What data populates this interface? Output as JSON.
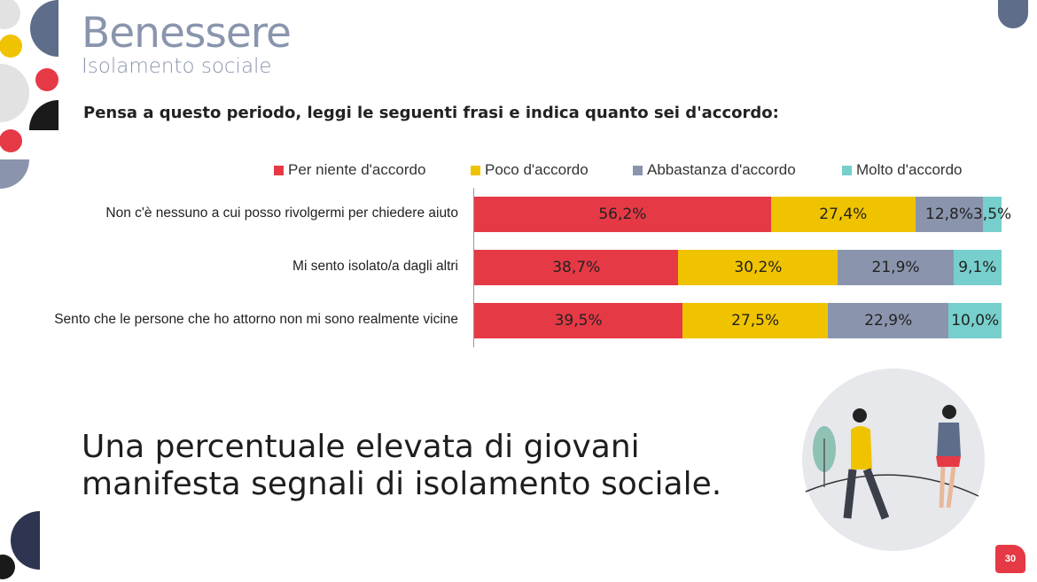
{
  "header": {
    "title": "Benessere",
    "subtitle": "Isolamento sociale"
  },
  "question": "Pensa a questo periodo, leggi le seguenti frasi e indica quanto sei d'accordo:",
  "chart_data": {
    "type": "bar",
    "orientation": "horizontal-stacked-100",
    "categories": [
      "Non c'è nessuno a cui posso rivolgermi per chiedere aiuto",
      "Mi sento isolato/a dagli altri",
      "Sento che le persone che ho attorno non mi sono realmente vicine"
    ],
    "series": [
      {
        "name": "Per niente d'accordo",
        "color": "#e63946",
        "values": [
          56.2,
          38.7,
          39.5
        ],
        "labels": [
          "56,2%",
          "38,7%",
          "39,5%"
        ]
      },
      {
        "name": "Poco d'accordo",
        "color": "#f0c300",
        "values": [
          27.4,
          30.2,
          27.5
        ],
        "labels": [
          "27,4%",
          "30,2%",
          "27,5%"
        ]
      },
      {
        "name": "Abbastanza d'accordo",
        "color": "#8a95ad",
        "values": [
          12.8,
          21.9,
          22.9
        ],
        "labels": [
          "12,8%",
          "21,9%",
          "22,9%"
        ]
      },
      {
        "name": "Molto d'accordo",
        "color": "#76cfcc",
        "values": [
          3.5,
          9.1,
          10.0
        ],
        "labels": [
          "3,5%",
          "9,1%",
          "10,0%"
        ]
      }
    ],
    "legend": "top"
  },
  "conclusion": [
    "Una percentuale elevata di giovani",
    "manifesta segnali di isolamento sociale."
  ],
  "page_number": "30"
}
